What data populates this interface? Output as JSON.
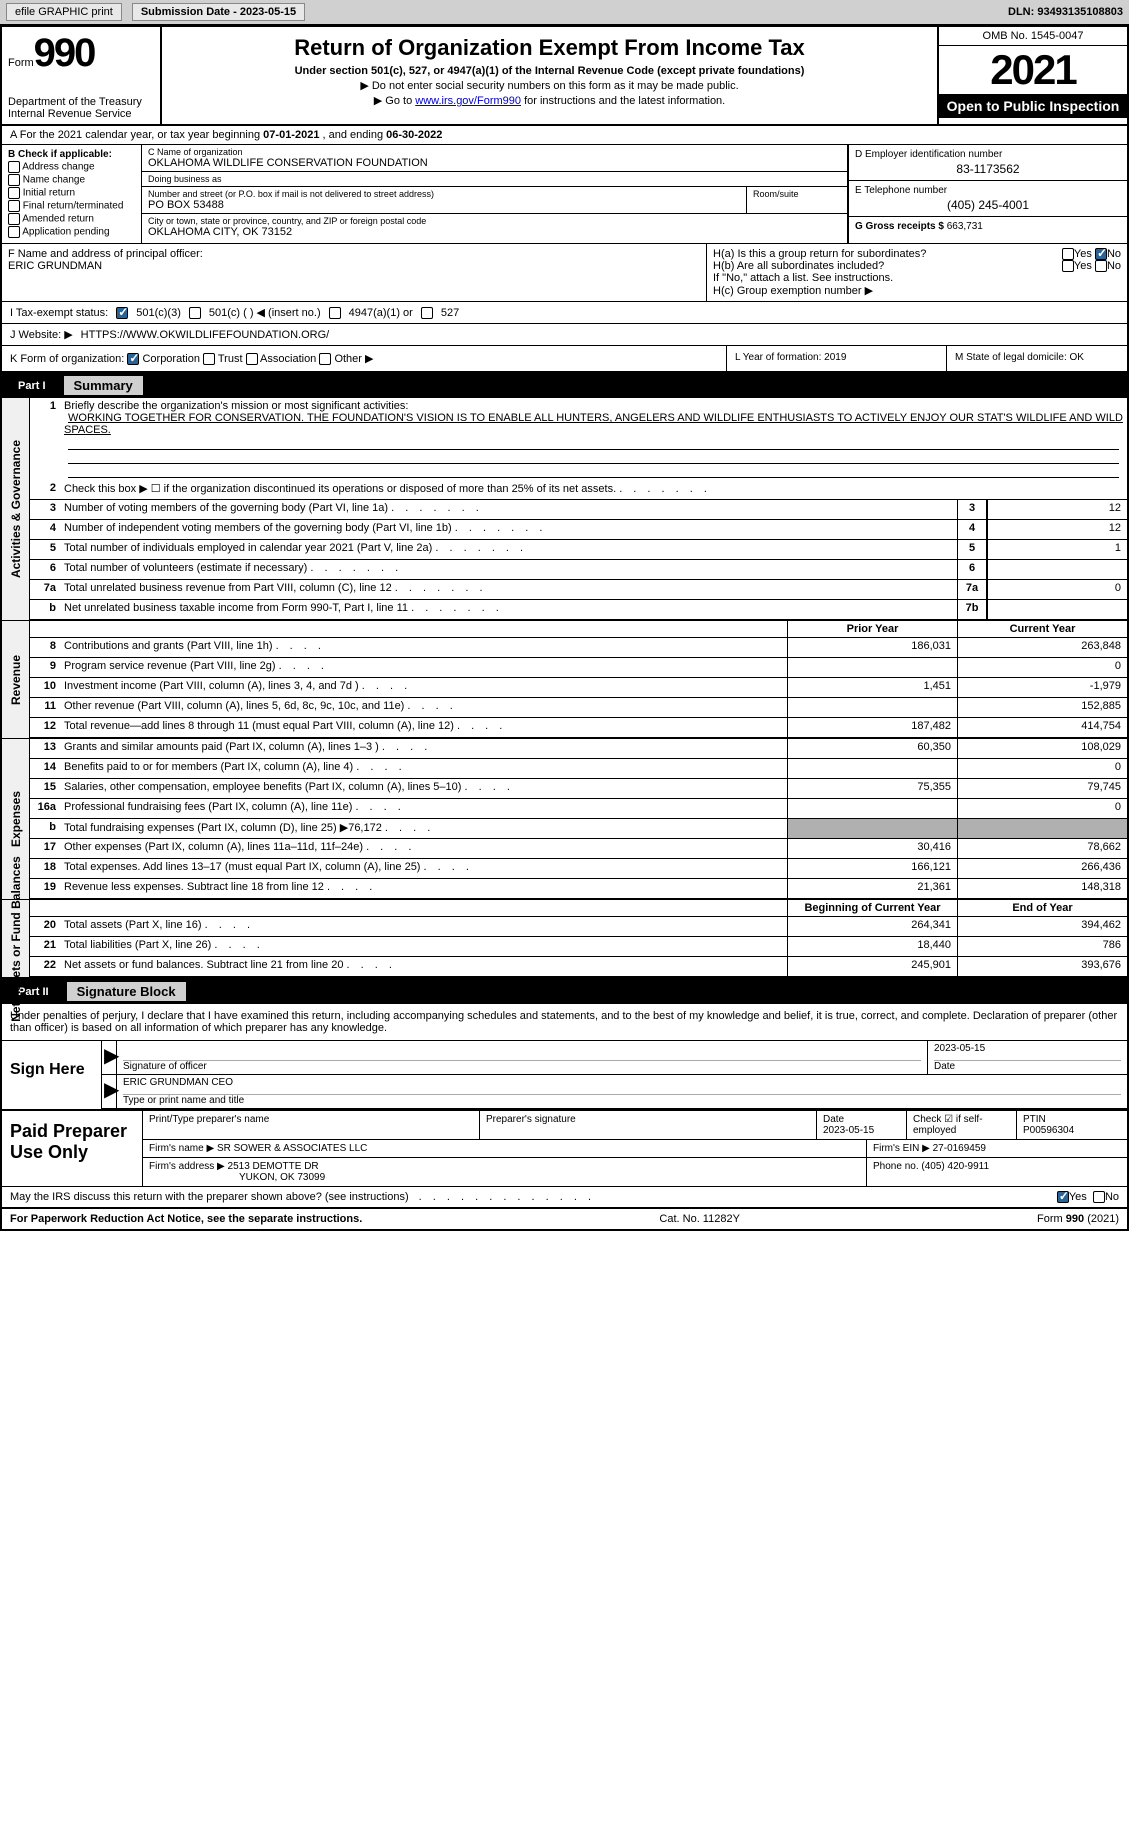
{
  "topbar": {
    "efile_label": "efile GRAPHIC print",
    "submission_label": "Submission Date - 2023-05-15",
    "dln_label": "DLN: 93493135108803"
  },
  "header": {
    "form_prefix": "Form",
    "form_number": "990",
    "dept": "Department of the Treasury Internal Revenue Service",
    "title": "Return of Organization Exempt From Income Tax",
    "subtitle": "Under section 501(c), 527, or 4947(a)(1) of the Internal Revenue Code (except private foundations)",
    "instr1": "▶ Do not enter social security numbers on this form as it may be made public.",
    "instr2_pre": "▶ Go to ",
    "instr2_link": "www.irs.gov/Form990",
    "instr2_post": " for instructions and the latest information.",
    "omb": "OMB No. 1545-0047",
    "year": "2021",
    "inspection": "Open to Public Inspection"
  },
  "line_a": {
    "prefix": "A For the 2021 calendar year, or tax year beginning ",
    "begin": "07-01-2021",
    "mid": " , and ending ",
    "end": "06-30-2022"
  },
  "section_b": {
    "label": "B Check if applicable:",
    "items": [
      "Address change",
      "Name change",
      "Initial return",
      "Final return/terminated",
      "Amended return",
      "Application pending"
    ]
  },
  "section_c": {
    "name_label": "C Name of organization",
    "name": "OKLAHOMA WILDLIFE CONSERVATION FOUNDATION",
    "dba_label": "Doing business as",
    "dba": "",
    "addr_label": "Number and street (or P.O. box if mail is not delivered to street address)",
    "room_label": "Room/suite",
    "addr": "PO BOX 53488",
    "city_label": "City or town, state or province, country, and ZIP or foreign postal code",
    "city": "OKLAHOMA CITY, OK  73152"
  },
  "section_d": {
    "label": "D Employer identification number",
    "value": "83-1173562"
  },
  "section_e": {
    "label": "E Telephone number",
    "value": "(405) 245-4001"
  },
  "section_g": {
    "label": "G Gross receipts $",
    "value": "663,731"
  },
  "section_f": {
    "label": "F Name and address of principal officer:",
    "value": "ERIC GRUNDMAN"
  },
  "section_h": {
    "ha_label": "H(a)  Is this a group return for subordinates?",
    "hb_label": "H(b)  Are all subordinates included?",
    "hb_note": "If \"No,\" attach a list. See instructions.",
    "hc_label": "H(c)  Group exemption number ▶",
    "yes": "Yes",
    "no": "No"
  },
  "section_i": {
    "label": "I   Tax-exempt status:",
    "opt1": "501(c)(3)",
    "opt2": "501(c) (  ) ◀ (insert no.)",
    "opt3": "4947(a)(1) or",
    "opt4": "527"
  },
  "section_j": {
    "label": "J   Website: ▶",
    "value": "HTTPS://WWW.OKWILDLIFEFOUNDATION.ORG/"
  },
  "section_k": {
    "label": "K Form of organization:",
    "opts": [
      "Corporation",
      "Trust",
      "Association",
      "Other ▶"
    ]
  },
  "section_l": {
    "label": "L Year of formation:",
    "value": "2019"
  },
  "section_m": {
    "label": "M State of legal domicile:",
    "value": "OK"
  },
  "part1": {
    "label": "Part I",
    "title": "Summary"
  },
  "mission": {
    "prompt": "Briefly describe the organization's mission or most significant activities:",
    "text": "WORKING TOGETHER FOR CONSERVATION. THE FOUNDATION'S VISION IS TO ENABLE ALL HUNTERS, ANGELERS AND WILDLIFE ENTHUSIASTS TO ACTIVELY ENJOY OUR STAT'S WILDLIFE AND WILD SPACES."
  },
  "activities_lines": [
    {
      "num": "2",
      "text": "Check this box ▶ ☐ if the organization discontinued its operations or disposed of more than 25% of its net assets.",
      "box": "",
      "val": ""
    },
    {
      "num": "3",
      "text": "Number of voting members of the governing body (Part VI, line 1a)",
      "box": "3",
      "val": "12"
    },
    {
      "num": "4",
      "text": "Number of independent voting members of the governing body (Part VI, line 1b)",
      "box": "4",
      "val": "12"
    },
    {
      "num": "5",
      "text": "Total number of individuals employed in calendar year 2021 (Part V, line 2a)",
      "box": "5",
      "val": "1"
    },
    {
      "num": "6",
      "text": "Total number of volunteers (estimate if necessary)",
      "box": "6",
      "val": ""
    },
    {
      "num": "7a",
      "text": "Total unrelated business revenue from Part VIII, column (C), line 12",
      "box": "7a",
      "val": "0"
    },
    {
      "num": "b",
      "text": "Net unrelated business taxable income from Form 990-T, Part I, line 11",
      "box": "7b",
      "val": ""
    }
  ],
  "col_headers": {
    "prior": "Prior Year",
    "current": "Current Year",
    "begin": "Beginning of Current Year",
    "end": "End of Year"
  },
  "revenue_lines": [
    {
      "num": "8",
      "text": "Contributions and grants (Part VIII, line 1h)",
      "prior": "186,031",
      "current": "263,848"
    },
    {
      "num": "9",
      "text": "Program service revenue (Part VIII, line 2g)",
      "prior": "",
      "current": "0"
    },
    {
      "num": "10",
      "text": "Investment income (Part VIII, column (A), lines 3, 4, and 7d )",
      "prior": "1,451",
      "current": "-1,979"
    },
    {
      "num": "11",
      "text": "Other revenue (Part VIII, column (A), lines 5, 6d, 8c, 9c, 10c, and 11e)",
      "prior": "",
      "current": "152,885"
    },
    {
      "num": "12",
      "text": "Total revenue—add lines 8 through 11 (must equal Part VIII, column (A), line 12)",
      "prior": "187,482",
      "current": "414,754"
    }
  ],
  "expense_lines": [
    {
      "num": "13",
      "text": "Grants and similar amounts paid (Part IX, column (A), lines 1–3 )",
      "prior": "60,350",
      "current": "108,029"
    },
    {
      "num": "14",
      "text": "Benefits paid to or for members (Part IX, column (A), line 4)",
      "prior": "",
      "current": "0"
    },
    {
      "num": "15",
      "text": "Salaries, other compensation, employee benefits (Part IX, column (A), lines 5–10)",
      "prior": "75,355",
      "current": "79,745"
    },
    {
      "num": "16a",
      "text": "Professional fundraising fees (Part IX, column (A), line 11e)",
      "prior": "",
      "current": "0"
    },
    {
      "num": "b",
      "text": "Total fundraising expenses (Part IX, column (D), line 25) ▶76,172",
      "prior": "shaded",
      "current": "shaded"
    },
    {
      "num": "17",
      "text": "Other expenses (Part IX, column (A), lines 11a–11d, 11f–24e)",
      "prior": "30,416",
      "current": "78,662"
    },
    {
      "num": "18",
      "text": "Total expenses. Add lines 13–17 (must equal Part IX, column (A), line 25)",
      "prior": "166,121",
      "current": "266,436"
    },
    {
      "num": "19",
      "text": "Revenue less expenses. Subtract line 18 from line 12",
      "prior": "21,361",
      "current": "148,318"
    }
  ],
  "netassets_lines": [
    {
      "num": "20",
      "text": "Total assets (Part X, line 16)",
      "prior": "264,341",
      "current": "394,462"
    },
    {
      "num": "21",
      "text": "Total liabilities (Part X, line 26)",
      "prior": "18,440",
      "current": "786"
    },
    {
      "num": "22",
      "text": "Net assets or fund balances. Subtract line 21 from line 20",
      "prior": "245,901",
      "current": "393,676"
    }
  ],
  "rotate_labels": {
    "act": "Activities & Governance",
    "rev": "Revenue",
    "exp": "Expenses",
    "net": "Net Assets or Fund Balances"
  },
  "part2": {
    "label": "Part II",
    "title": "Signature Block"
  },
  "sig": {
    "declaration": "Under penalties of perjury, I declare that I have examined this return, including accompanying schedules and statements, and to the best of my knowledge and belief, it is true, correct, and complete. Declaration of preparer (other than officer) is based on all information of which preparer has any knowledge.",
    "sign_here": "Sign Here",
    "sig_officer": "Signature of officer",
    "date_label": "Date",
    "sig_date": "2023-05-15",
    "name_title": "ERIC GRUNDMAN  CEO",
    "name_label": "Type or print name and title"
  },
  "prep": {
    "label": "Paid Preparer Use Only",
    "name_label": "Print/Type preparer's name",
    "sig_label": "Preparer's signature",
    "date_label": "Date",
    "date": "2023-05-15",
    "check_label": "Check ☑ if self-employed",
    "ptin_label": "PTIN",
    "ptin": "P00596304",
    "firm_name_label": "Firm's name   ▶",
    "firm_name": "SR SOWER & ASSOCIATES LLC",
    "firm_ein_label": "Firm's EIN ▶",
    "firm_ein": "27-0169459",
    "firm_addr_label": "Firm's address ▶",
    "firm_addr1": "2513 DEMOTTE DR",
    "firm_addr2": "YUKON, OK  73099",
    "phone_label": "Phone no.",
    "phone": "(405) 420-9911"
  },
  "bottom": {
    "discuss": "May the IRS discuss this return with the preparer shown above? (see instructions)",
    "yes": "Yes",
    "no": "No"
  },
  "footer": {
    "left": "For Paperwork Reduction Act Notice, see the separate instructions.",
    "mid": "Cat. No. 11282Y",
    "right": "Form 990 (2021)"
  }
}
